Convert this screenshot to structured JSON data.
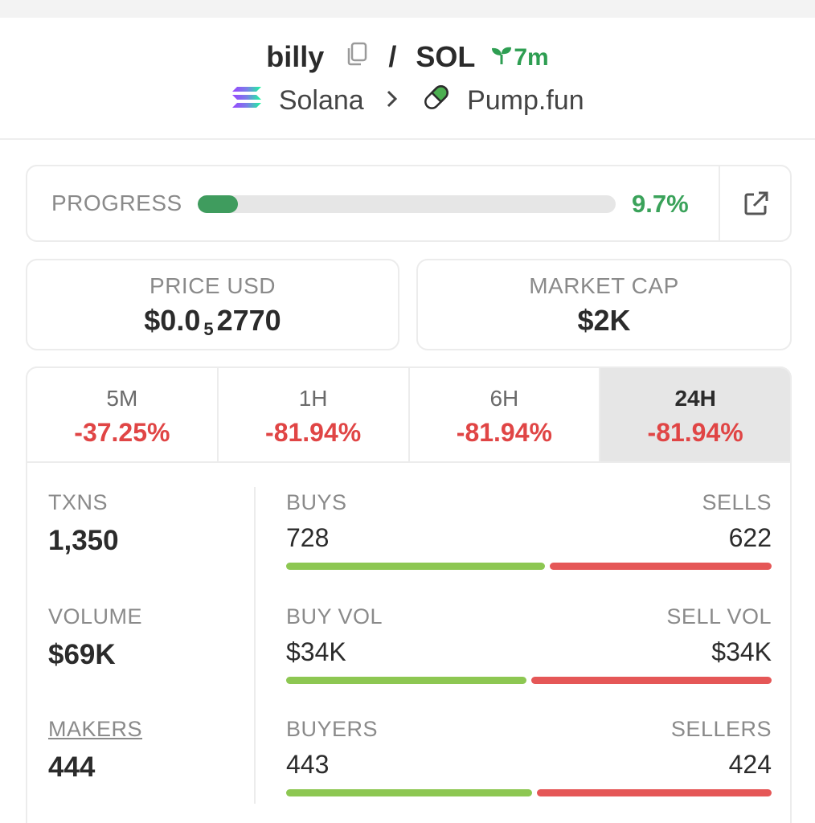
{
  "header": {
    "token": "billy",
    "separator": "/",
    "quote": "SOL",
    "age": "7m",
    "chain": "Solana",
    "dex": "Pump.fun"
  },
  "progress": {
    "label": "PROGRESS",
    "value_text": "9.7%",
    "value_fraction": 0.097
  },
  "price": {
    "label": "PRICE USD",
    "prefix": "$0.0",
    "zeros": "5",
    "digits": "2770"
  },
  "market_cap": {
    "label": "MARKET CAP",
    "value": "$2K"
  },
  "tabs": [
    {
      "label": "5M",
      "change": "-37.25%"
    },
    {
      "label": "1H",
      "change": "-81.94%"
    },
    {
      "label": "6H",
      "change": "-81.94%"
    },
    {
      "label": "24H",
      "change": "-81.94%"
    }
  ],
  "metrics": {
    "txns_label": "TXNS",
    "txns": "1,350",
    "volume_label": "VOLUME",
    "volume": "$69K",
    "makers_label": "MAKERS",
    "makers": "444"
  },
  "splits": {
    "buys_label": "BUYS",
    "buys": "728",
    "sells_label": "SELLS",
    "sells": "622",
    "buy_vol_label": "BUY VOL",
    "buy_vol": "$34K",
    "sell_vol_label": "SELL VOL",
    "sell_vol": "$34K",
    "buyers_label": "BUYERS",
    "buyers": "443",
    "sellers_label": "SELLERS",
    "sellers": "424",
    "txn_buy_share": 0.539,
    "vol_buy_share": 0.5,
    "maker_buy_share": 0.511
  },
  "colors": {
    "accent_green": "#3aa25a",
    "negative_red": "#e04545",
    "buy_bar": "#8dc752",
    "sell_bar": "#e55757"
  }
}
